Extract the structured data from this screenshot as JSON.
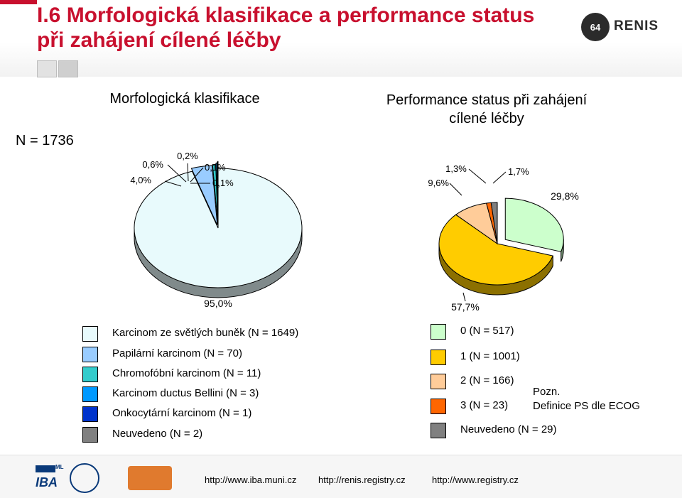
{
  "title_line1": "I.6 Morfologická klasifikace a performance status",
  "title_line2": "při zahájení cílené léčby",
  "renis_logo": {
    "badge": "64",
    "name": "RENIS"
  },
  "n_label": "N = 1736",
  "chart_data": [
    {
      "type": "pie",
      "title": "Morfologická klasifikace",
      "slices": [
        {
          "label": "Karcinom ze světlých buněk (N = 1649)",
          "value": 95.0,
          "pct_label": "95,0%",
          "color": "#e8fafc"
        },
        {
          "label": "Papilární karcinom (N = 70)",
          "value": 4.0,
          "pct_label": "4,0%",
          "color": "#99ccff"
        },
        {
          "label": "Chromofóbní karcinom (N = 11)",
          "value": 0.6,
          "pct_label": "0,6%",
          "color": "#33cccc"
        },
        {
          "label": "Karcinom ductus Bellini (N = 3)",
          "value": 0.2,
          "pct_label": "0,2%",
          "color": "#0099ff"
        },
        {
          "label": "Onkocytární karcinom (N = 1)",
          "value": 0.1,
          "pct_label": "0,1%",
          "color": "#0033cc"
        },
        {
          "label": "Neuvedeno (N = 2)",
          "value": 0.1,
          "pct_label": "0,1%",
          "color": "#808080"
        }
      ]
    },
    {
      "type": "pie",
      "title_line1": "Performance status při zahájení",
      "title_line2": "cílené léčby",
      "slices": [
        {
          "label": "0 (N = 517)",
          "value": 29.8,
          "pct_label": "29,8%",
          "color": "#ccffcc"
        },
        {
          "label": "1 (N = 1001)",
          "value": 57.7,
          "pct_label": "57,7%",
          "color": "#ffcc00"
        },
        {
          "label": "2 (N = 166)",
          "value": 9.6,
          "pct_label": "9,6%",
          "color": "#ffcc99"
        },
        {
          "label": "3 (N = 23)",
          "value": 1.3,
          "pct_label": "1,3%",
          "color": "#ff6600"
        },
        {
          "label": "Neuvedeno (N = 29)",
          "value": 1.7,
          "pct_label": "1,7%",
          "color": "#808080"
        }
      ]
    }
  ],
  "note_line1": "Pozn.",
  "note_line2": "Definice PS dle ECOG",
  "footer": {
    "urls": [
      "http://www.iba.muni.cz",
      "http://renis.registry.cz",
      "http://www.registry.cz"
    ],
    "iba_logo": "IBA",
    "iba_superscript": "ML",
    "muni_seal": "UNIVERSITAS MASARYKIANA BRUNENSIS",
    "society_logo": "česká onkologická společnost ČLS JEP"
  }
}
